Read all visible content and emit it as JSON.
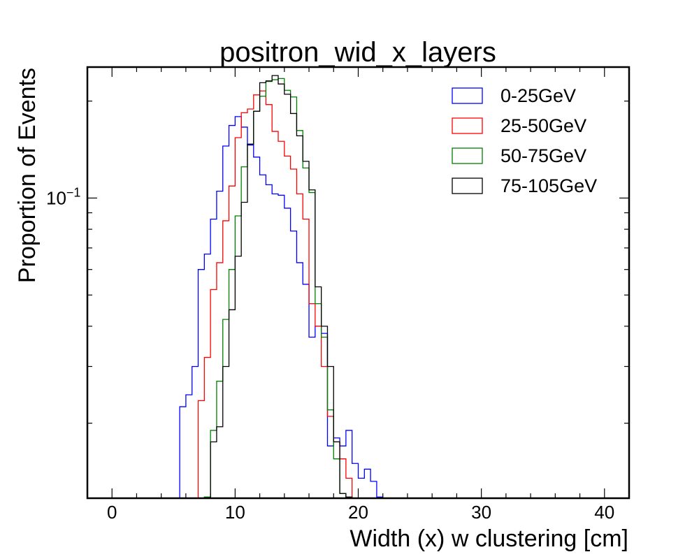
{
  "chart_data": {
    "type": "histogram",
    "title": "positron_wid_x_layers",
    "xlabel": "Width (x) w clustering [cm]",
    "ylabel": "Proportion of Events",
    "xlim": [
      -2,
      42
    ],
    "ylim": [
      0.0117,
      0.255
    ],
    "yscale": "log",
    "grid": false,
    "legend_position": "top-right",
    "x_ticks": [
      0,
      10,
      20,
      30,
      40
    ],
    "x_tick_labels": [
      "0",
      "10",
      "20",
      "30",
      "40"
    ],
    "y_ticks": [
      0.1
    ],
    "y_tick_labels": [
      {
        "base": "10",
        "exp": "−1"
      }
    ],
    "bin_width": 0.5,
    "series": [
      {
        "name": "0-25GeV",
        "color": "#0000ff",
        "bin_start": 5.5,
        "values": [
          0.0225,
          0.0245,
          0.03,
          0.06,
          0.067,
          0.086,
          0.105,
          0.145,
          0.168,
          0.179,
          0.166,
          0.146,
          0.134,
          0.118,
          0.11,
          0.103,
          0.102,
          0.093,
          0.079,
          0.063,
          0.054,
          0.037,
          0.04,
          0.038,
          0.017,
          0.018,
          0.017,
          0.019,
          0.015,
          0.0135,
          0.0144,
          0.0132,
          0.0118
        ]
      },
      {
        "name": "25-50GeV",
        "color": "#ff0000",
        "bin_start": 7.0,
        "values": [
          0.0235,
          0.032,
          0.052,
          0.063,
          0.085,
          0.109,
          0.154,
          0.184,
          0.189,
          0.209,
          0.215,
          0.195,
          0.161,
          0.15,
          0.135,
          0.123,
          0.103,
          0.086,
          0.047,
          0.04,
          0.03,
          0.021,
          0.0175,
          0.0155,
          0.0135
        ]
      },
      {
        "name": "50-75GeV",
        "color": "#008000",
        "bin_start": 7.5,
        "values": [
          0.0118,
          0.019,
          0.027,
          0.042,
          0.06,
          0.088,
          0.125,
          0.147,
          0.186,
          0.207,
          0.23,
          0.233,
          0.235,
          0.216,
          0.206,
          0.162,
          0.124,
          0.104,
          0.047,
          0.037,
          0.022,
          0.0155,
          0.0121
        ]
      },
      {
        "name": "75-105GeV",
        "color": "#000000",
        "bin_start": 8.0,
        "values": [
          0.0175,
          0.0195,
          0.03,
          0.045,
          0.066,
          0.097,
          0.147,
          0.186,
          0.228,
          0.231,
          0.24,
          0.226,
          0.21,
          0.183,
          0.156,
          0.13,
          0.106,
          0.053,
          0.04,
          0.03,
          0.0175,
          0.0121,
          0.0118
        ]
      }
    ]
  }
}
